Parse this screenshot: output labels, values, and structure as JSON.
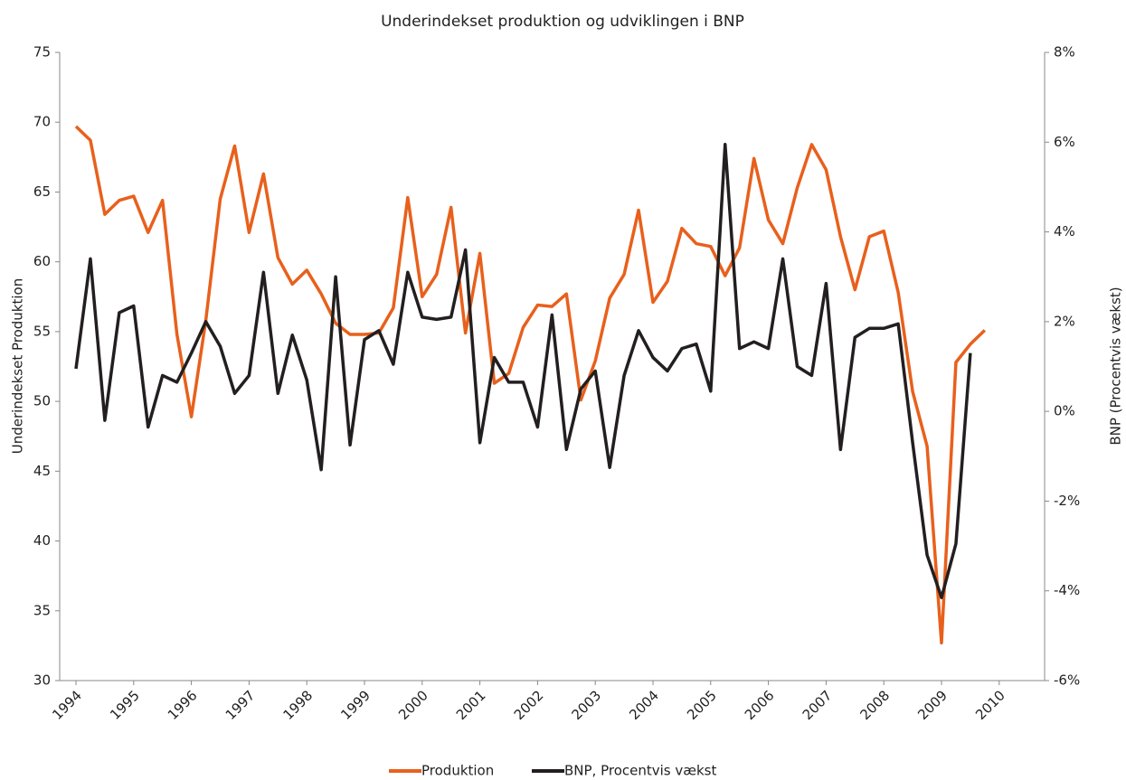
{
  "chart_data": {
    "type": "line",
    "title": "Underindekset produktion og udviklingen i BNP",
    "y_label": "Underindekset Produktion",
    "y2_label": "BNP (Procentvis vækst)",
    "categories": [
      "1994",
      null,
      null,
      null,
      "1995",
      null,
      null,
      null,
      "1996",
      null,
      null,
      null,
      "1997",
      null,
      null,
      null,
      "1998",
      null,
      null,
      null,
      "1999",
      null,
      null,
      null,
      "2000",
      null,
      null,
      null,
      "2001",
      null,
      null,
      null,
      "2002",
      null,
      null,
      null,
      "2003",
      null,
      null,
      null,
      "2004",
      null,
      null,
      null,
      "2005",
      null,
      null,
      null,
      "2006",
      null,
      null,
      null,
      "2007",
      null,
      null,
      null,
      "2008",
      null,
      null,
      null,
      "2009",
      null,
      null,
      null,
      "2010"
    ],
    "series": [
      {
        "name": "Produktion",
        "color": "#e8601c",
        "axis": "y",
        "values": [
          69.7,
          68.7,
          63.4,
          64.4,
          64.7,
          62.1,
          64.4,
          54.8,
          48.9,
          55.8,
          64.5,
          68.3,
          62.1,
          66.3,
          60.3,
          58.4,
          59.4,
          57.7,
          55.6,
          54.8,
          54.8,
          54.9,
          56.7,
          64.6,
          57.5,
          59.1,
          63.9,
          54.9,
          60.6,
          51.3,
          52.0,
          55.3,
          56.9,
          56.8,
          57.7,
          50.1,
          52.9,
          57.4,
          59.1,
          63.7,
          57.1,
          58.6,
          62.4,
          61.3,
          61.1,
          59.0,
          61.0,
          67.4,
          63.0,
          61.3,
          65.3,
          68.4,
          66.6,
          61.8,
          58.0,
          61.8,
          62.2,
          57.8,
          50.7,
          46.8,
          32.7,
          52.8,
          54.1,
          55.1,
          null
        ]
      },
      {
        "name": "BNP, Procentvis vækst",
        "color": "#231f20",
        "axis": "y2",
        "values": [
          0.95,
          3.4,
          -0.2,
          2.2,
          2.35,
          -0.35,
          0.8,
          0.65,
          1.3,
          2.0,
          1.45,
          0.4,
          0.8,
          3.1,
          0.4,
          1.7,
          0.7,
          -1.3,
          3.0,
          -0.75,
          1.6,
          1.8,
          1.05,
          3.1,
          2.1,
          2.05,
          2.1,
          3.6,
          -0.7,
          1.2,
          0.65,
          0.65,
          -0.35,
          2.15,
          -0.85,
          0.5,
          0.9,
          -1.25,
          0.8,
          1.8,
          1.2,
          0.9,
          1.4,
          1.5,
          0.45,
          5.95,
          1.4,
          1.55,
          1.4,
          3.4,
          1.0,
          0.8,
          2.85,
          -0.85,
          1.65,
          1.85,
          1.85,
          1.95,
          -0.7,
          -3.2,
          -4.15,
          -2.95,
          1.3,
          null,
          null
        ]
      }
    ],
    "ylim": [
      30,
      75
    ],
    "yticks": [
      30,
      35,
      40,
      45,
      50,
      55,
      60,
      65,
      70,
      75
    ],
    "y2lim": [
      -6,
      8
    ],
    "y2ticks": [
      {
        "value": -6,
        "label": "-6%"
      },
      {
        "value": -4,
        "label": "-4%"
      },
      {
        "value": -2,
        "label": "-2%"
      },
      {
        "value": 0,
        "label": "0%"
      },
      {
        "value": 2,
        "label": "2%"
      },
      {
        "value": 4,
        "label": "4%"
      },
      {
        "value": 6,
        "label": "6%"
      },
      {
        "value": 8,
        "label": "8%"
      }
    ],
    "grid": false,
    "legend": "bottom"
  }
}
